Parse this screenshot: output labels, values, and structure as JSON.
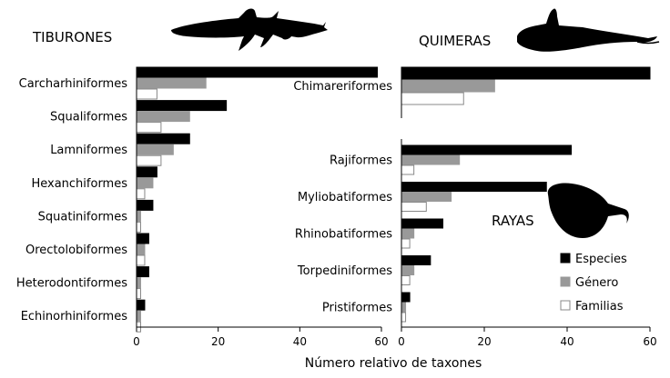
{
  "chart_data": [
    {
      "type": "bar",
      "orientation": "horizontal",
      "panel_title": "TIBURONES",
      "categories": [
        "Carcharhiniformes",
        "Squaliformes",
        "Lamniformes",
        "Hexanchiformes",
        "Squatiniformes",
        "Orectolobiformes",
        "Heterodontiformes",
        "Echinorhiniformes"
      ],
      "series": [
        {
          "name": "Especies",
          "color": "#000000",
          "values": [
            59,
            22,
            13,
            5,
            4,
            3,
            3,
            2
          ]
        },
        {
          "name": "Género",
          "color": "#999999",
          "values": [
            17,
            13,
            9,
            4,
            1,
            2,
            1,
            1
          ]
        },
        {
          "name": "Familias",
          "color": "#ffffff",
          "values": [
            5,
            6,
            6,
            2,
            1,
            2,
            1,
            1
          ]
        }
      ],
      "xlim": [
        0,
        60
      ],
      "xticks": [
        0,
        20,
        40,
        60
      ]
    },
    {
      "type": "bar",
      "orientation": "horizontal",
      "panel_title": "QUIMERAS",
      "categories": [
        "Chimareriformes"
      ],
      "series": [
        {
          "name": "Especies",
          "color": "#000000",
          "values": [
            60
          ]
        },
        {
          "name": "Género",
          "color": "#999999",
          "values": [
            22.5
          ]
        },
        {
          "name": "Familias",
          "color": "#ffffff",
          "values": [
            15
          ]
        }
      ],
      "xlim": [
        0,
        60
      ]
    },
    {
      "type": "bar",
      "orientation": "horizontal",
      "panel_title": "RAYAS",
      "categories": [
        "Rajiformes",
        "Myliobatiformes",
        "Rhinobatiformes",
        "Torpediniformes",
        "Pristiformes"
      ],
      "series": [
        {
          "name": "Especies",
          "color": "#000000",
          "values": [
            41,
            35,
            10,
            7,
            2
          ]
        },
        {
          "name": "Género",
          "color": "#999999",
          "values": [
            14,
            12,
            3,
            3,
            1
          ]
        },
        {
          "name": "Familias",
          "color": "#ffffff",
          "values": [
            3,
            6,
            2,
            2,
            1
          ]
        }
      ],
      "xlim": [
        0,
        60
      ],
      "xticks": [
        0,
        20,
        40,
        60
      ]
    }
  ],
  "xlabel": "Número relativo de taxones",
  "legend": {
    "placement": "bottom-right",
    "items": [
      {
        "name": "Especies",
        "color": "#000000"
      },
      {
        "name": "Género",
        "color": "#999999"
      },
      {
        "name": "Familias",
        "color": "#ffffff"
      }
    ]
  }
}
